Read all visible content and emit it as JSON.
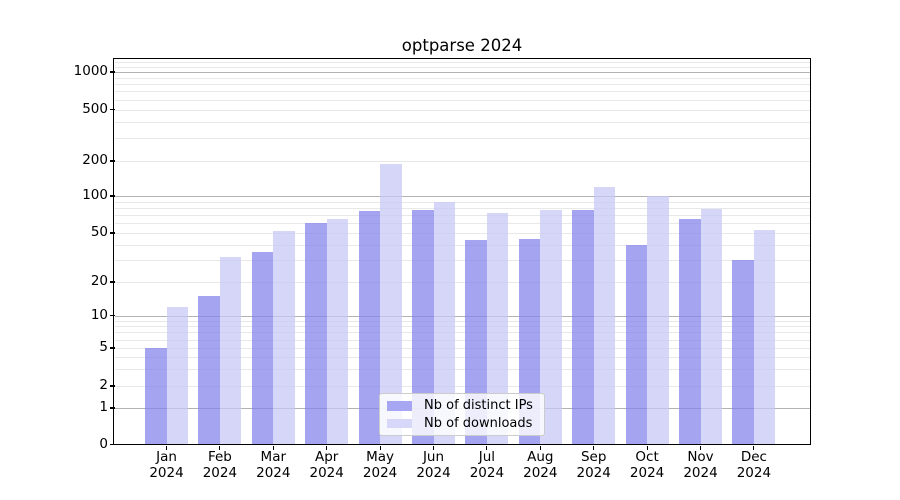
{
  "chart_data": {
    "type": "bar",
    "title": "optparse 2024",
    "categories": [
      "Jan 2024",
      "Feb 2024",
      "Mar 2024",
      "Apr 2024",
      "May 2024",
      "Jun 2024",
      "Jul 2024",
      "Aug 2024",
      "Sep 2024",
      "Oct 2024",
      "Nov 2024",
      "Dec 2024"
    ],
    "x_tick_months": [
      "Jan",
      "Feb",
      "Mar",
      "Apr",
      "May",
      "Jun",
      "Jul",
      "Aug",
      "Sep",
      "Oct",
      "Nov",
      "Dec"
    ],
    "x_tick_year": "2024",
    "series": [
      {
        "name": "Nb of distinct IPs",
        "color": "#a6a6f2",
        "values": [
          5,
          15,
          35,
          60,
          75,
          77,
          44,
          45,
          77,
          40,
          65,
          30
        ]
      },
      {
        "name": "Nb of downloads",
        "color": "#d7d7f9",
        "values": [
          12,
          32,
          52,
          65,
          190,
          90,
          73,
          77,
          120,
          100,
          78,
          53
        ]
      }
    ],
    "yscale": "symlog",
    "ylim": [
      0,
      1000
    ],
    "ytick_values": [
      0,
      1,
      2,
      5,
      10,
      20,
      50,
      100,
      200,
      500,
      1000
    ],
    "ytick_labels": [
      "0",
      "1",
      "2",
      "5",
      "10",
      "20",
      "50",
      "100",
      "200",
      "500",
      "1000"
    ],
    "grid": "horizontal, major and minor log lines",
    "legend_position": "lower center"
  },
  "colors": {
    "bar_ips_fill": "rgba(129,129,234,0.72)",
    "bar_downloads_fill": "rgba(198,198,245,0.72)",
    "grid_major": "#b2b2b2",
    "grid_minor": "#e8e8e8",
    "spine": "#000000",
    "text": "#000000",
    "legend_bg": "rgba(255,255,255,0.8)",
    "legend_border": "#cccccc"
  }
}
